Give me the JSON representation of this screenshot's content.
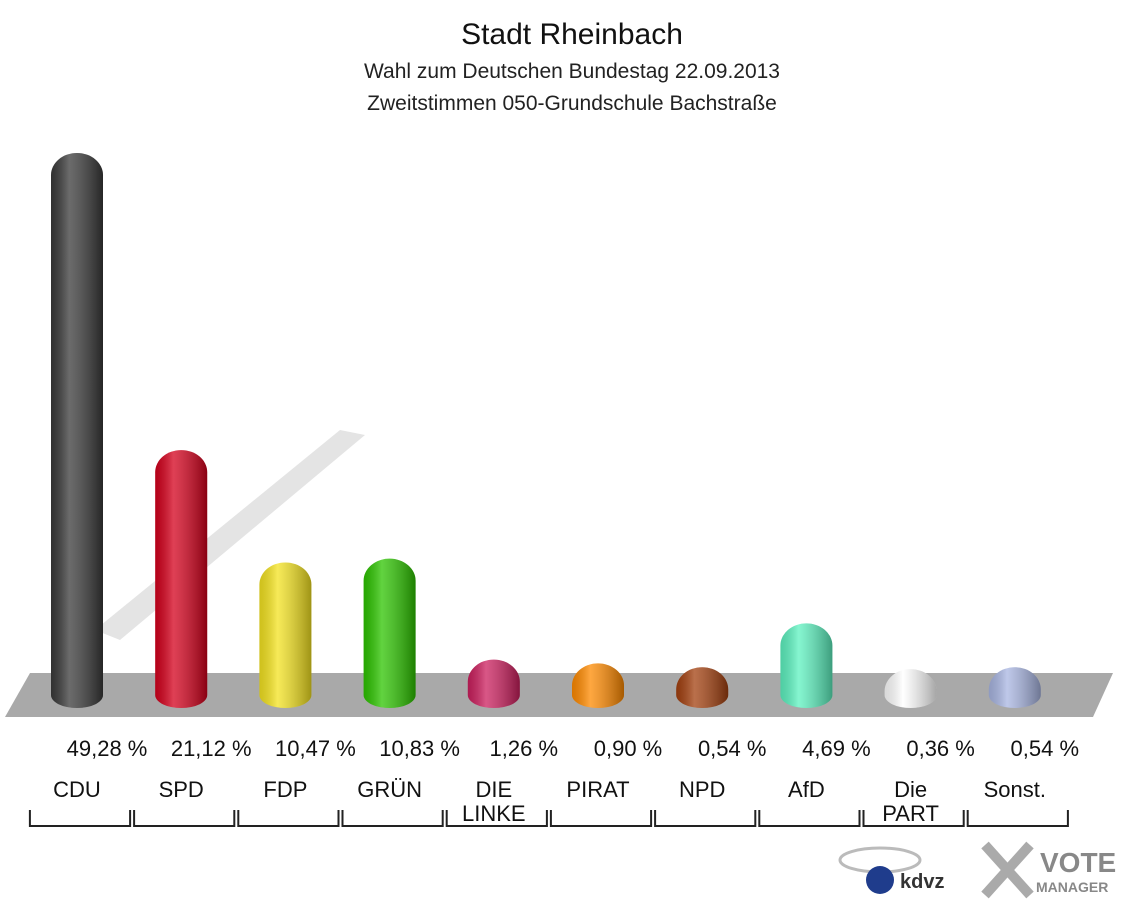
{
  "chart_data": {
    "type": "bar",
    "title": "Stadt Rheinbach",
    "subtitle": [
      "Wahl zum Deutschen Bundestag 22.09.2013",
      "Zweitstimmen 050-Grundschule Bachstraße"
    ],
    "categories": [
      "CDU",
      "SPD",
      "FDP",
      "GRÜN",
      "DIE LINKE",
      "PIRAT",
      "NPD",
      "AfD",
      "Die PART",
      "Sonst."
    ],
    "values": [
      49.28,
      21.12,
      10.47,
      10.83,
      1.26,
      0.9,
      0.54,
      4.69,
      0.36,
      0.54
    ],
    "value_labels": [
      "49,28 %",
      "21,12 %",
      "10,47 %",
      "10,83 %",
      "1,26 %",
      "0,90 %",
      "0,54 %",
      "4,69 %",
      "0,36 %",
      "0,54 %"
    ],
    "colors": [
      "#3a3a3a",
      "#d4001c",
      "#f4e320",
      "#2dc400",
      "#cc1f5e",
      "#ff8a00",
      "#a3400f",
      "#5df2c0",
      "#ffffff",
      "#a9b6e2"
    ]
  },
  "footer": {
    "kdvz": "kdvz",
    "vote": "VOTE",
    "manager": "MANAGER"
  }
}
